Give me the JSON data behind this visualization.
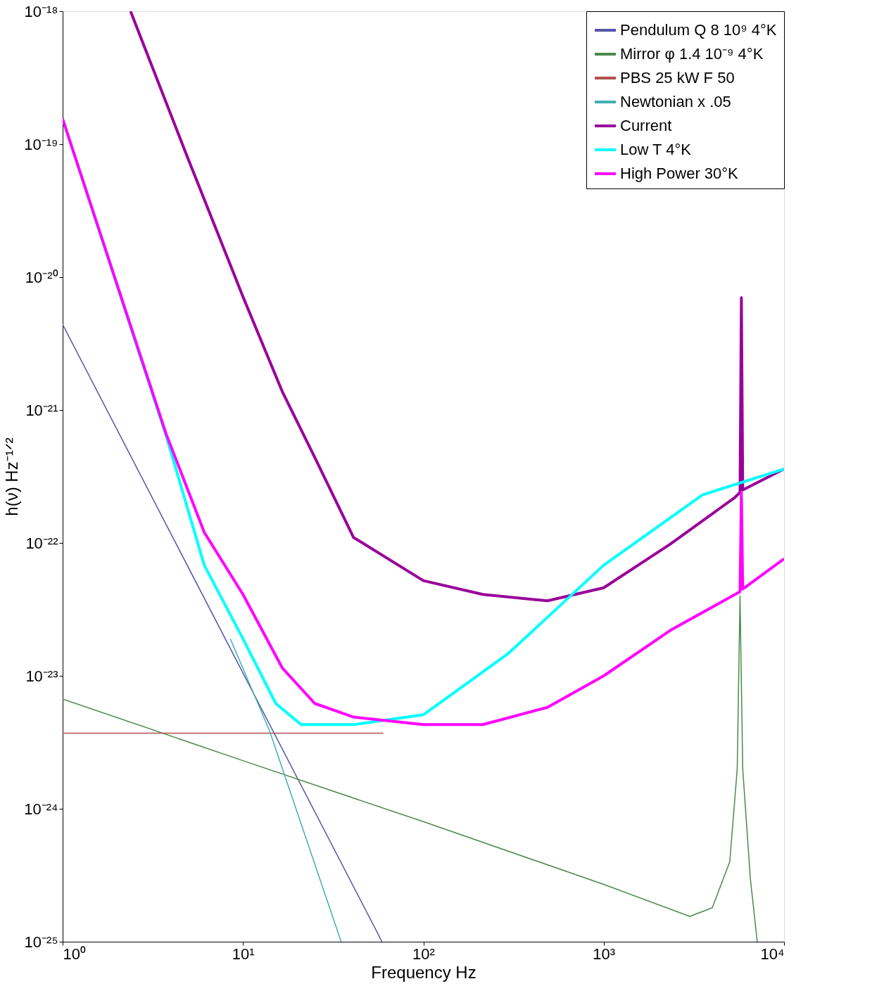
{
  "chart_data": {
    "type": "line",
    "xlabel": "Frequency Hz",
    "ylabel": "h(ν) Hz⁻¹ᐟ²",
    "log": "xy",
    "legend": "top right",
    "grid": false,
    "xlim": [
      1,
      10000
    ],
    "ylim": [
      1e-25,
      1e-18
    ],
    "xticks": [
      {
        "value": 1,
        "label": "10⁰"
      },
      {
        "value": 10,
        "label": "10¹"
      },
      {
        "value": 100,
        "label": "10²"
      },
      {
        "value": 1000,
        "label": "10³"
      },
      {
        "value": 10000,
        "label": "10⁴"
      }
    ],
    "yticks": [
      {
        "value": 1e-25,
        "label": "10⁻²⁵"
      },
      {
        "value": 1e-24,
        "label": "10⁻²⁴"
      },
      {
        "value": 1e-23,
        "label": "10⁻²³"
      },
      {
        "value": 1e-22,
        "label": "10⁻²²"
      },
      {
        "value": 1e-21,
        "label": "10⁻²¹"
      },
      {
        "value": 1e-20,
        "label": "10⁻²⁰"
      },
      {
        "value": 1e-19,
        "label": "10⁻¹⁹"
      },
      {
        "value": 1e-18,
        "label": "10⁻¹⁸"
      }
    ],
    "series": [
      {
        "name": "Pendulum Q 8 10⁹ 4°K",
        "color": "#5555aa",
        "x": [
          1,
          59
        ],
        "values": [
          4.4e-21,
          1e-25
        ]
      },
      {
        "name": "Mirror φ 1.4 10⁻⁹ 4°K",
        "color": "#4a8a4a",
        "x": [
          1,
          10,
          100,
          1000,
          3000,
          4000,
          5000,
          5500,
          5700,
          5900,
          6500,
          7100
        ],
        "values": [
          6.7e-24,
          2.3e-24,
          8e-25,
          2.7e-25,
          1.55e-25,
          1.8e-25,
          4e-25,
          2e-24,
          4e-23,
          2e-24,
          3e-25,
          1e-25
        ]
      },
      {
        "name": "PBS 25 kW F 50",
        "color": "#b05050",
        "x": [
          1,
          60
        ],
        "values": [
          3.7e-24,
          3.7e-24
        ]
      },
      {
        "name": "Newtonian x .05",
        "color": "#40b0b0",
        "x": [
          8.5,
          14,
          35
        ],
        "values": [
          1.9e-23,
          3.9e-24,
          1e-25
        ]
      },
      {
        "name": "Current",
        "color": "#990099",
        "x": [
          2.38,
          4.8,
          10,
          16.5,
          25,
          41,
          100,
          214,
          488,
          1000,
          2340,
          5340,
          5700,
          5800,
          5900,
          10000
        ],
        "values": [
          1e-18,
          8.7e-20,
          7.1e-21,
          1.38e-21,
          4.4e-22,
          1.1e-22,
          5.2e-23,
          4.1e-23,
          3.67e-23,
          4.6e-23,
          9.8e-23,
          2.2e-22,
          2.4e-22,
          7e-21,
          2.5e-22,
          3.6e-22
        ]
      },
      {
        "name": "Low T 4°K",
        "color": "#00ffff",
        "x": [
          1,
          3.75,
          6.1,
          10,
          15.2,
          21,
          41,
          100,
          297,
          1000,
          3530,
          10000
        ],
        "values": [
          1.55e-19,
          6.4e-22,
          6.8e-23,
          1.9e-23,
          6.2e-24,
          4.3e-24,
          4.3e-24,
          5.1e-24,
          1.48e-23,
          6.8e-23,
          2.3e-22,
          3.6e-22
        ]
      },
      {
        "name": "High Power 30°K",
        "color": "#ff00ff",
        "x": [
          1,
          3.75,
          6.1,
          10,
          16.5,
          25,
          41,
          100,
          214,
          488,
          1000,
          2340,
          5700,
          5800,
          5900,
          10000
        ],
        "values": [
          1.55e-19,
          6.6e-22,
          1.2e-22,
          4.1e-23,
          1.15e-23,
          6.2e-24,
          4.9e-24,
          4.3e-24,
          4.3e-24,
          5.8e-24,
          1e-23,
          2.2e-23,
          4.3e-23,
          2.4e-22,
          4.5e-23,
          7.6e-23
        ]
      }
    ]
  }
}
